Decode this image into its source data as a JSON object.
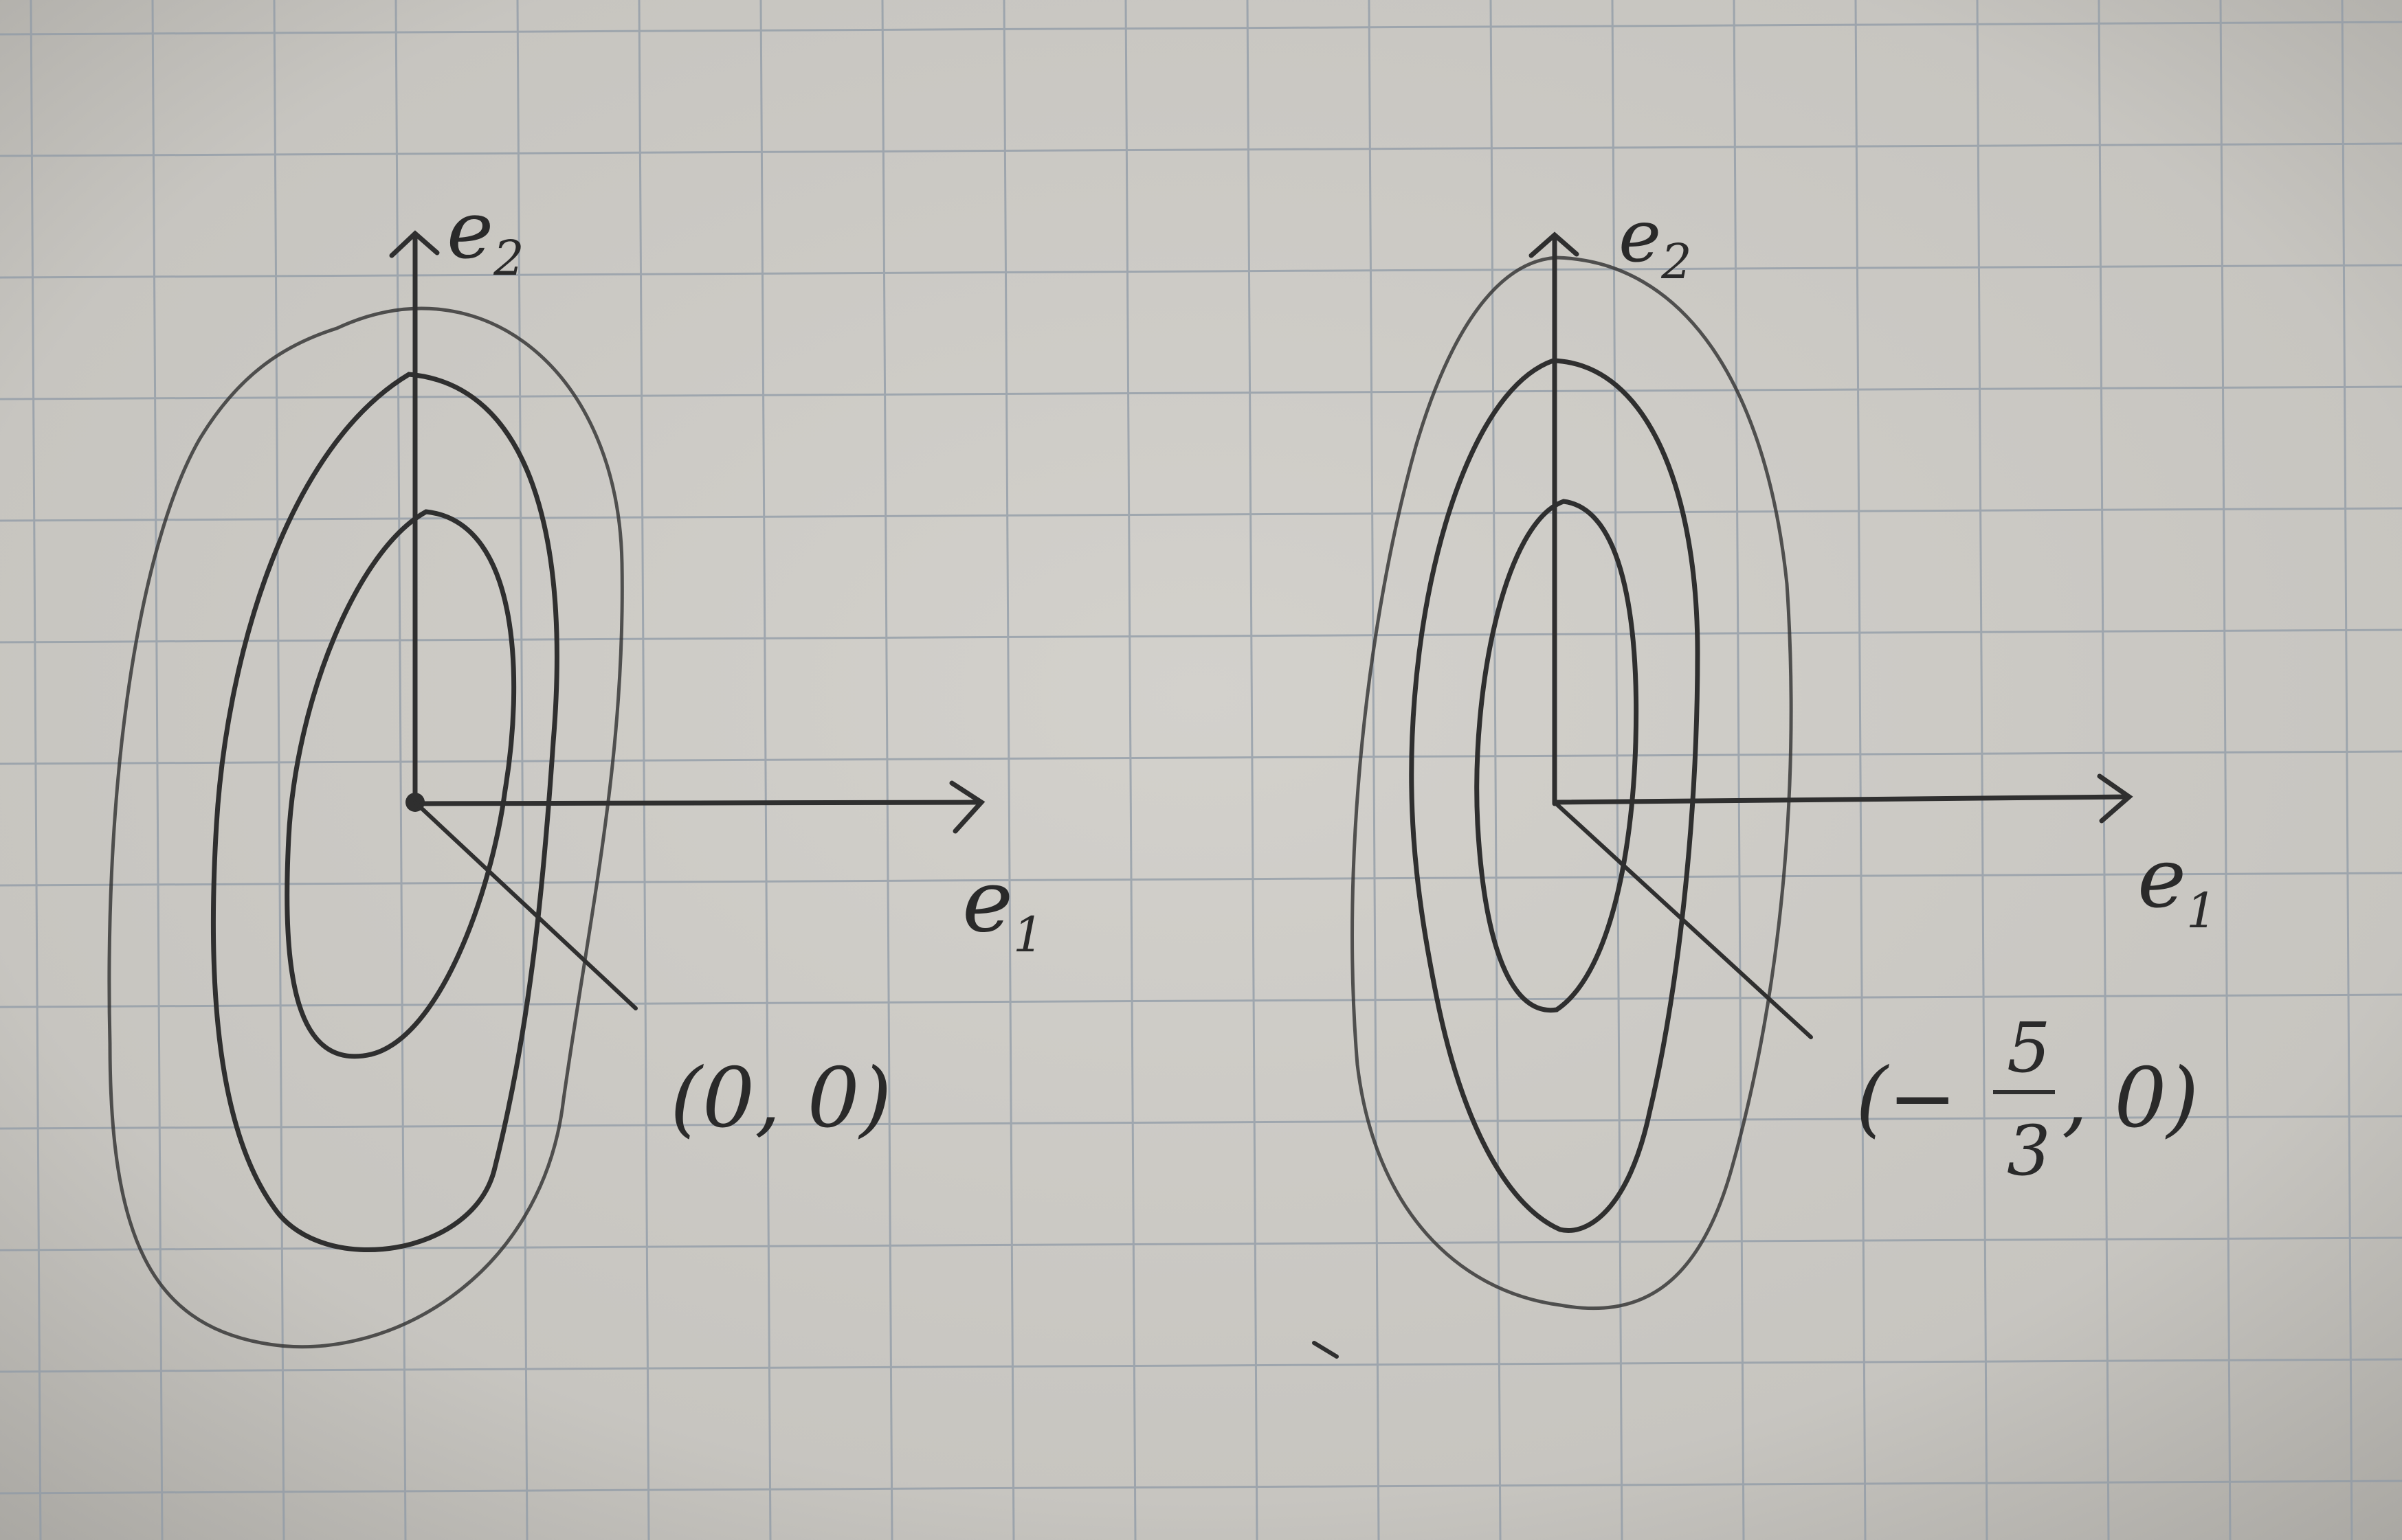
{
  "photo": {
    "subject": "hand-drawn contour ellipses on grid paper",
    "paper_color": "#cfcdc8",
    "grid_color": "#8f9aa6",
    "ink_color": "#2f2f2f",
    "grid_spacing_note": "square grid"
  },
  "left_sketch": {
    "y_axis_label": "e",
    "y_axis_sub": "2",
    "x_axis_label": "e",
    "x_axis_sub": "1",
    "point_label": "(0, 0)"
  },
  "right_sketch": {
    "y_axis_label": "e",
    "y_axis_sub": "2",
    "x_axis_label": "e",
    "x_axis_sub": "1",
    "point_label_prefix": "(−",
    "point_num": "5",
    "point_den": "3",
    "point_label_suffix": ", 0)"
  }
}
